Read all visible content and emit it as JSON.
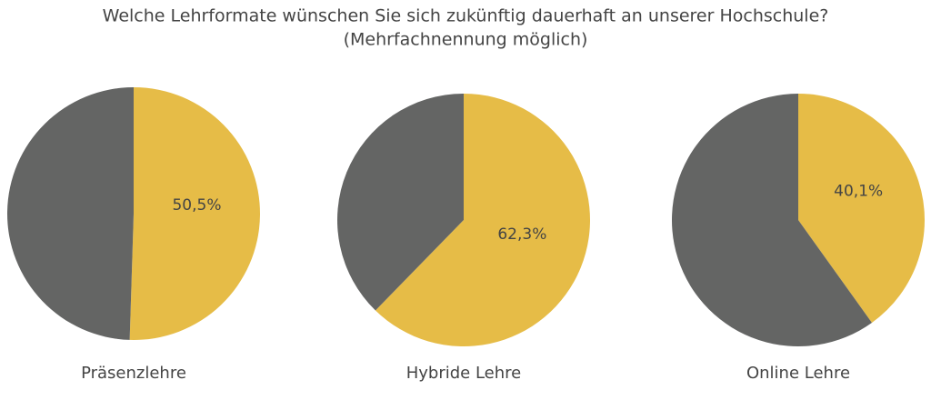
{
  "title": "Welche Lehrformate wünschen Sie sich zukünftig dauerhaft an unserer Hochschule?",
  "subtitle": "(Mehrfachnennung möglich)",
  "chart_data": [
    {
      "type": "pie",
      "title": "Präsenzlehre",
      "values": [
        50.5,
        49.5
      ],
      "value_labels": [
        "50,5%",
        null
      ],
      "colors": [
        "#e6bc47",
        "#646564"
      ]
    },
    {
      "type": "pie",
      "title": "Hybride Lehre",
      "values": [
        62.3,
        37.7
      ],
      "value_labels": [
        "62,3%",
        null
      ],
      "colors": [
        "#e6bc47",
        "#646564"
      ]
    },
    {
      "type": "pie",
      "title": "Online Lehre",
      "values": [
        40.1,
        59.9
      ],
      "value_labels": [
        "40,1%",
        null
      ],
      "colors": [
        "#e6bc47",
        "#646564"
      ]
    }
  ]
}
